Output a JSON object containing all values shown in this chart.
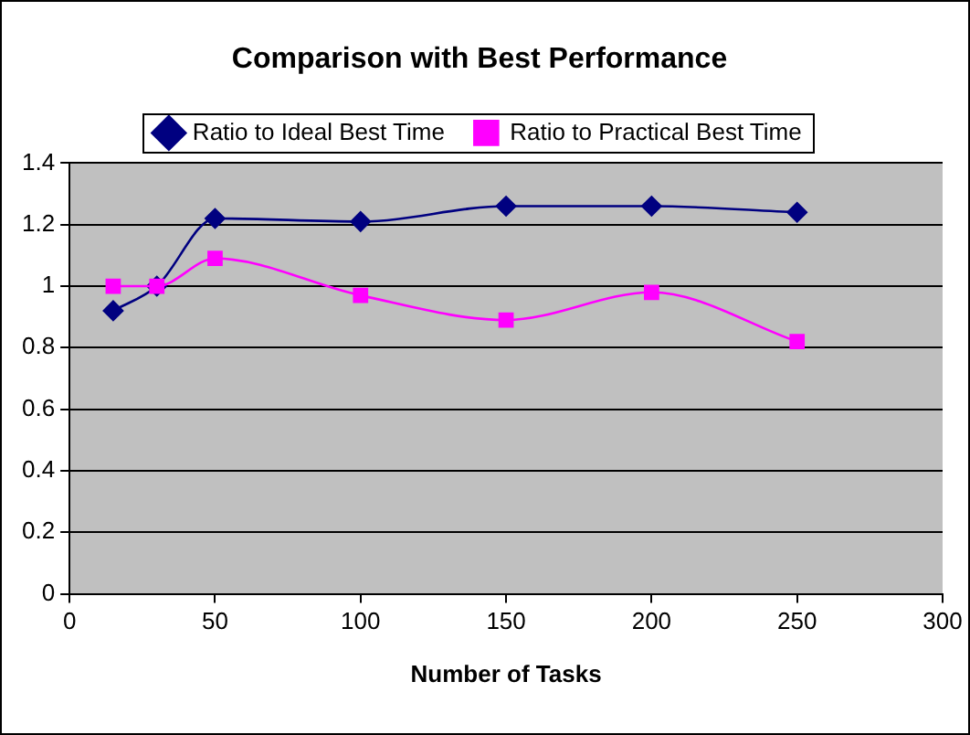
{
  "chart_data": {
    "type": "line",
    "title": "Comparison with Best Performance",
    "xlabel": "Number of Tasks",
    "x": [
      15,
      30,
      50,
      100,
      150,
      200,
      250
    ],
    "series": [
      {
        "name": "Ratio to Ideal Best Time",
        "color": "#000080",
        "marker": "diamond",
        "values": [
          0.92,
          1.0,
          1.22,
          1.21,
          1.26,
          1.26,
          1.24
        ]
      },
      {
        "name": "Ratio to Practical Best Time",
        "color": "#ff00ff",
        "marker": "square",
        "values": [
          1.0,
          1.0,
          1.09,
          0.97,
          0.89,
          0.98,
          0.82
        ]
      }
    ],
    "xlim": [
      0,
      300
    ],
    "xticks": [
      0,
      50,
      100,
      150,
      200,
      250,
      300
    ],
    "ylim": [
      0,
      1.4
    ],
    "yticks": [
      0,
      0.2,
      0.4,
      0.6,
      0.8,
      1,
      1.2,
      1.4
    ],
    "grid": "y",
    "legend": "top",
    "line_style": "solid"
  }
}
